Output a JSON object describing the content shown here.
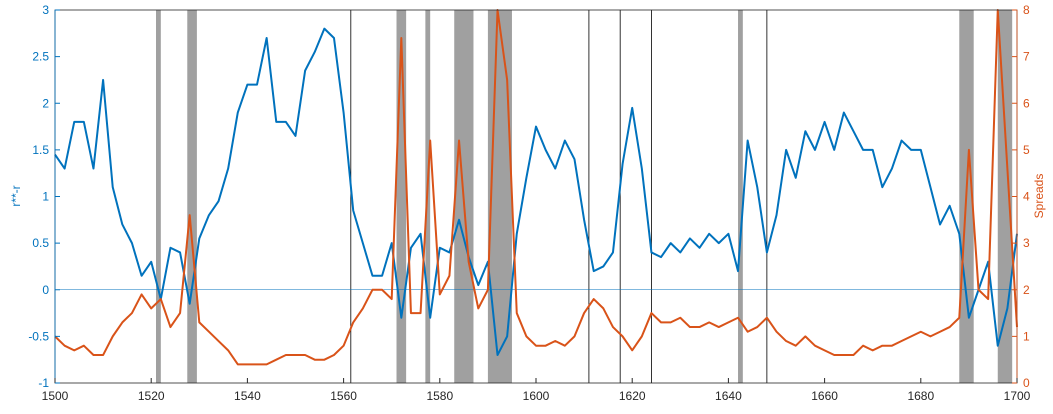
{
  "chart_data": {
    "type": "line",
    "x": [
      1500,
      1502,
      1504,
      1506,
      1508,
      1510,
      1512,
      1514,
      1516,
      1518,
      1520,
      1522,
      1524,
      1526,
      1528,
      1530,
      1532,
      1534,
      1536,
      1538,
      1540,
      1542,
      1544,
      1546,
      1548,
      1550,
      1552,
      1554,
      1556,
      1558,
      1560,
      1562,
      1564,
      1566,
      1568,
      1570,
      1572,
      1574,
      1576,
      1578,
      1580,
      1582,
      1584,
      1586,
      1588,
      1590,
      1592,
      1594,
      1596,
      1598,
      1600,
      1602,
      1604,
      1606,
      1608,
      1610,
      1612,
      1614,
      1616,
      1618,
      1620,
      1622,
      1624,
      1626,
      1628,
      1630,
      1632,
      1634,
      1636,
      1638,
      1640,
      1642,
      1644,
      1646,
      1648,
      1650,
      1652,
      1654,
      1656,
      1658,
      1660,
      1662,
      1664,
      1666,
      1668,
      1670,
      1672,
      1674,
      1676,
      1678,
      1680,
      1682,
      1684,
      1686,
      1688,
      1690,
      1692,
      1694,
      1696,
      1698,
      1700
    ],
    "series": [
      {
        "name": "r**-r",
        "color": "#0072BD",
        "axis": "y",
        "values": [
          1.45,
          1.3,
          1.8,
          1.8,
          1.3,
          2.25,
          1.1,
          0.7,
          0.5,
          0.15,
          0.3,
          -0.1,
          0.45,
          0.4,
          -0.15,
          0.55,
          0.8,
          0.95,
          1.3,
          1.9,
          2.2,
          2.2,
          2.7,
          1.8,
          1.8,
          1.65,
          2.35,
          2.55,
          2.8,
          2.7,
          1.9,
          0.85,
          0.5,
          0.15,
          0.15,
          0.5,
          -0.3,
          0.45,
          0.6,
          -0.3,
          0.45,
          0.4,
          0.75,
          0.35,
          0.05,
          0.3,
          -0.7,
          -0.5,
          0.6,
          1.2,
          1.75,
          1.5,
          1.3,
          1.6,
          1.4,
          0.75,
          0.2,
          0.25,
          0.4,
          1.35,
          1.95,
          1.3,
          0.4,
          0.35,
          0.5,
          0.4,
          0.55,
          0.45,
          0.6,
          0.5,
          0.6,
          0.2,
          1.6,
          1.1,
          0.4,
          0.8,
          1.5,
          1.2,
          1.7,
          1.5,
          1.8,
          1.5,
          1.9,
          1.7,
          1.5,
          1.5,
          1.1,
          1.3,
          1.6,
          1.5,
          1.5,
          1.1,
          0.7,
          0.9,
          0.6,
          -0.3,
          0.0,
          0.3,
          -0.6,
          -0.2,
          0.6
        ]
      },
      {
        "name": "Spreads",
        "color": "#D95319",
        "axis": "y2",
        "values": [
          1.0,
          0.8,
          0.7,
          0.8,
          0.6,
          0.6,
          1.0,
          1.3,
          1.5,
          1.9,
          1.6,
          1.8,
          1.2,
          1.5,
          3.6,
          1.3,
          1.1,
          0.9,
          0.7,
          0.4,
          0.4,
          0.4,
          0.4,
          0.5,
          0.6,
          0.6,
          0.6,
          0.5,
          0.5,
          0.6,
          0.8,
          1.3,
          1.6,
          2.0,
          2.0,
          1.8,
          7.4,
          1.5,
          1.5,
          5.2,
          1.9,
          2.3,
          5.2,
          2.6,
          1.6,
          2.0,
          8.0,
          6.5,
          1.5,
          1.0,
          0.8,
          0.8,
          0.9,
          0.8,
          1.0,
          1.5,
          1.8,
          1.6,
          1.2,
          1.0,
          0.7,
          1.0,
          1.5,
          1.3,
          1.3,
          1.4,
          1.2,
          1.2,
          1.3,
          1.2,
          1.3,
          1.4,
          1.1,
          1.2,
          1.4,
          1.1,
          0.9,
          0.8,
          1.0,
          0.8,
          0.7,
          0.6,
          0.6,
          0.6,
          0.8,
          0.7,
          0.8,
          0.8,
          0.9,
          1.0,
          1.1,
          1.0,
          1.1,
          1.2,
          1.4,
          5.0,
          2.0,
          1.8,
          8.0,
          4.6,
          1.2
        ]
      }
    ],
    "ylabel": "r**-r",
    "y2label": "Spreads",
    "xlim": [
      1500,
      1700
    ],
    "xticks": [
      1500,
      1520,
      1540,
      1560,
      1580,
      1600,
      1620,
      1640,
      1660,
      1680,
      1700
    ],
    "ylim": [
      -1,
      3
    ],
    "yticks": [
      -1,
      -0.5,
      0,
      0.5,
      1,
      1.5,
      2,
      2.5,
      3
    ],
    "y2lim": [
      0,
      8
    ],
    "y2ticks": [
      0,
      1,
      2,
      3,
      4,
      5,
      6,
      7,
      8
    ],
    "zero_line": 0,
    "shaded_regions": [
      [
        1521,
        1522
      ],
      [
        1527.5,
        1529.5
      ],
      [
        1571,
        1573
      ],
      [
        1577,
        1578
      ],
      [
        1583,
        1587
      ],
      [
        1590,
        1595
      ],
      [
        1642,
        1643
      ],
      [
        1688,
        1691
      ],
      [
        1696,
        1699
      ]
    ],
    "shade_color": "#A0A0A0",
    "vlines": [
      1561.5,
      1611,
      1617.5,
      1624,
      1648
    ]
  }
}
